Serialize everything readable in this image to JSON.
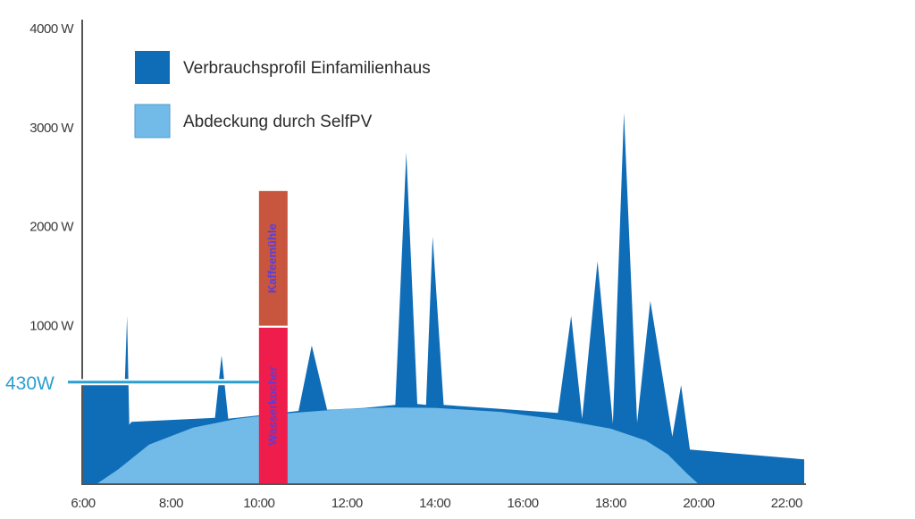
{
  "chart_data": {
    "type": "area",
    "title": "",
    "xlabel": "",
    "ylabel": "",
    "xlim": [
      6,
      22.4
    ],
    "ylim": [
      -600,
      4000
    ],
    "y_ticks": [
      {
        "value": 4000,
        "label": "4000 W"
      },
      {
        "value": 3000,
        "label": "3000 W"
      },
      {
        "value": 2000,
        "label": "2000 W"
      },
      {
        "value": 1000,
        "label": "1000 W"
      }
    ],
    "x_ticks": [
      {
        "value": 6,
        "label": "6:00"
      },
      {
        "value": 8,
        "label": "8:00"
      },
      {
        "value": 10,
        "label": "10:00"
      },
      {
        "value": 12,
        "label": "12:00"
      },
      {
        "value": 14,
        "label": "14:00"
      },
      {
        "value": 16,
        "label": "16:00"
      },
      {
        "value": 18,
        "label": "18:00"
      },
      {
        "value": 20,
        "label": "20:00"
      },
      {
        "value": 22,
        "label": "22:00"
      }
    ],
    "legend": {
      "placement": "top-left",
      "entries": [
        "Verbrauchsprofil Einfamilienhaus",
        "Abdeckung durch SelfPV"
      ]
    },
    "series": [
      {
        "name": "Verbrauchsprofil Einfamilienhaus",
        "color": "#0f6db8",
        "points": [
          [
            6.0,
            -600
          ],
          [
            6.0,
            430
          ],
          [
            6.95,
            430
          ],
          [
            7.0,
            1100
          ],
          [
            7.05,
            0
          ],
          [
            7.1,
            30
          ],
          [
            9.0,
            70
          ],
          [
            9.15,
            700
          ],
          [
            9.3,
            60
          ],
          [
            9.9,
            90
          ],
          [
            10.9,
            140
          ],
          [
            11.2,
            800
          ],
          [
            11.55,
            150
          ],
          [
            12.4,
            170
          ],
          [
            13.1,
            200
          ],
          [
            13.35,
            2750
          ],
          [
            13.6,
            210
          ],
          [
            13.8,
            200
          ],
          [
            13.95,
            1900
          ],
          [
            14.2,
            200
          ],
          [
            16.8,
            120
          ],
          [
            17.1,
            1100
          ],
          [
            17.35,
            60
          ],
          [
            17.7,
            1650
          ],
          [
            18.05,
            10
          ],
          [
            18.3,
            3150
          ],
          [
            18.6,
            20
          ],
          [
            18.9,
            1250
          ],
          [
            19.4,
            -120
          ],
          [
            19.6,
            400
          ],
          [
            19.8,
            -250
          ],
          [
            22.4,
            -350
          ],
          [
            22.4,
            -600
          ]
        ]
      },
      {
        "name": "Abdeckung durch SelfPV",
        "color": "#72bbe8",
        "points": [
          [
            6.3,
            -600
          ],
          [
            6.8,
            -450
          ],
          [
            7.5,
            -200
          ],
          [
            8.5,
            -30
          ],
          [
            9.5,
            60
          ],
          [
            10.5,
            110
          ],
          [
            12.0,
            160
          ],
          [
            13.0,
            175
          ],
          [
            14.0,
            170
          ],
          [
            15.5,
            130
          ],
          [
            17.0,
            40
          ],
          [
            18.0,
            -40
          ],
          [
            18.8,
            -160
          ],
          [
            19.3,
            -300
          ],
          [
            19.75,
            -500
          ],
          [
            20.0,
            -600
          ]
        ]
      }
    ],
    "overlay_bars": [
      {
        "label": "Wasserkocher",
        "x_start": 10.0,
        "x_end": 10.65,
        "y_start": -600,
        "y_end": 980,
        "color": "#ee1d4b"
      },
      {
        "label": "Kaffeemühle",
        "x_start": 10.0,
        "x_end": 10.65,
        "y_start": 1000,
        "y_end": 2360,
        "color": "#c8553d"
      }
    ],
    "annotations": [
      {
        "text": "430W",
        "value": 430,
        "color": "#2b9fd0"
      }
    ],
    "grid": false
  }
}
